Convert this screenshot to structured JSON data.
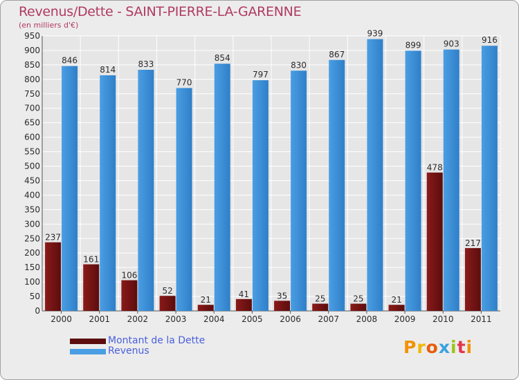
{
  "colors": {
    "debt": "#8a1a1a",
    "debt_dark": "#5c0d0d",
    "revenue": "#4a9ee3",
    "revenue_dark": "#2f7fc8",
    "grid": "#ffffff",
    "axis_text": "#2a2a2a",
    "title": "#b03a62",
    "legend_text": "#4a5fdc"
  },
  "legend": {
    "debt_label": "Montant de la Dette",
    "revenue_label": "Revenus"
  },
  "logo": {
    "text": "Proxiti"
  },
  "chart_data": {
    "type": "bar",
    "title": "Revenus/Dette - SAINT-PIERRE-LA-GARENNE",
    "subtitle": "(en milliers d'€)",
    "xlabel": "",
    "ylabel": "",
    "ylim": [
      0,
      950
    ],
    "ytick_step": 50,
    "grid": true,
    "categories": [
      "2000",
      "2001",
      "2002",
      "2003",
      "2004",
      "2005",
      "2006",
      "2007",
      "2008",
      "2009",
      "2010",
      "2011"
    ],
    "series": [
      {
        "name": "Montant de la Dette",
        "values": [
          237,
          161,
          106,
          52,
          21,
          41,
          35,
          25,
          25,
          21,
          478,
          217
        ]
      },
      {
        "name": "Revenus",
        "values": [
          846,
          814,
          833,
          770,
          854,
          797,
          830,
          867,
          939,
          899,
          903,
          916
        ]
      }
    ]
  }
}
